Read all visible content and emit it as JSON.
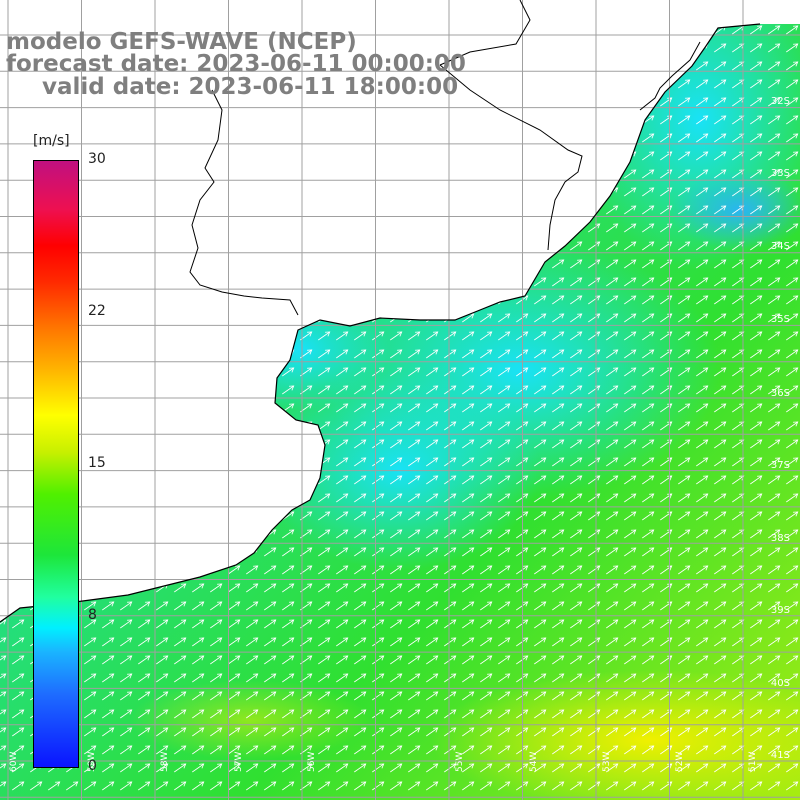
{
  "title": {
    "line1": "modelo GEFS-WAVE (NCEP)",
    "line2": "forecast date: 2023-06-11 00:00:00",
    "line3": "valid date: 2023-06-11 18:00:00"
  },
  "colorbar": {
    "unit": "[m/s]",
    "ticks": [
      "30",
      "22",
      "15",
      "8",
      "0"
    ],
    "range": [
      0,
      30
    ]
  },
  "lat_labels": [
    "32S",
    "33S",
    "34S",
    "35S",
    "36S",
    "37S",
    "38S",
    "39S",
    "40S",
    "41S"
  ],
  "lon_labels": [
    "60W",
    "59W",
    "58W",
    "57W",
    "56W",
    "55W",
    "54W",
    "53W",
    "52W",
    "51W"
  ],
  "wind_field": {
    "direction": "towards northeast",
    "speed_range_ms": [
      8,
      16
    ],
    "colors": {
      "low": "#1ae6ff",
      "mid": "#1dd96a",
      "high": "#3ce618",
      "max": "#e0ee00"
    }
  },
  "land_color": "#ffffff",
  "coastline_color": "#000000",
  "grid_color": "#a0a0a0"
}
